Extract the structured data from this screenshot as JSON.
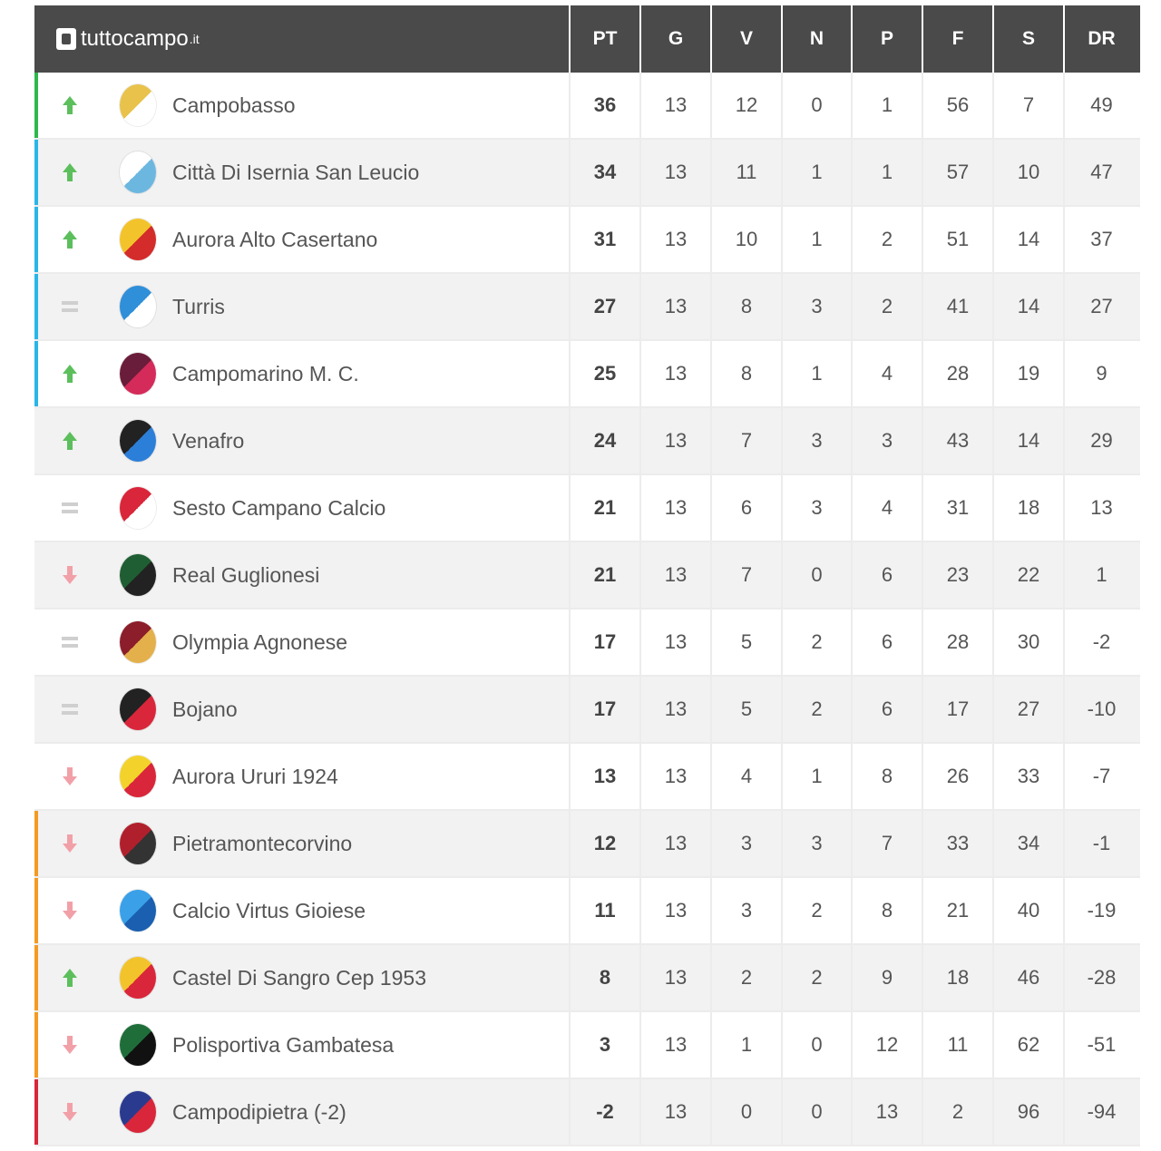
{
  "site": {
    "logo_text": "tuttocampo",
    "logo_tld": ".it"
  },
  "columns": [
    "PT",
    "G",
    "V",
    "N",
    "P",
    "F",
    "S",
    "DR"
  ],
  "colors": {
    "promotion": "#2db84d",
    "playoff": "#29b6e8",
    "playout": "#f59a23",
    "relegation": "#d9263a",
    "up": "#5cbf5c",
    "down": "#f2a0a8",
    "same": "#cfcfcf"
  },
  "teams": [
    {
      "name": "Campobasso",
      "trend": "up",
      "zone": "promotion",
      "badge_colors": [
        "#e8c24a",
        "#ffffff"
      ],
      "stats": [
        "36",
        "13",
        "12",
        "0",
        "1",
        "56",
        "7",
        "49"
      ]
    },
    {
      "name": "Città Di Isernia San Leucio",
      "trend": "up",
      "zone": "playoff",
      "badge_colors": [
        "#ffffff",
        "#6cb7e0"
      ],
      "stats": [
        "34",
        "13",
        "11",
        "1",
        "1",
        "57",
        "10",
        "47"
      ]
    },
    {
      "name": "Aurora Alto Casertano",
      "trend": "up",
      "zone": "playoff",
      "badge_colors": [
        "#f3c32b",
        "#d42b2b"
      ],
      "stats": [
        "31",
        "13",
        "10",
        "1",
        "2",
        "51",
        "14",
        "37"
      ]
    },
    {
      "name": "Turris",
      "trend": "same",
      "zone": "playoff",
      "badge_colors": [
        "#2f8fd8",
        "#ffffff"
      ],
      "stats": [
        "27",
        "13",
        "8",
        "3",
        "2",
        "41",
        "14",
        "27"
      ]
    },
    {
      "name": "Campomarino M. C.",
      "trend": "up",
      "zone": "playoff",
      "badge_colors": [
        "#6a1d3a",
        "#d42b5a"
      ],
      "stats": [
        "25",
        "13",
        "8",
        "1",
        "4",
        "28",
        "19",
        "9"
      ]
    },
    {
      "name": "Venafro",
      "trend": "up",
      "zone": "none",
      "badge_colors": [
        "#222222",
        "#2c7fd8"
      ],
      "stats": [
        "24",
        "13",
        "7",
        "3",
        "3",
        "43",
        "14",
        "29"
      ]
    },
    {
      "name": "Sesto Campano Calcio",
      "trend": "same",
      "zone": "none",
      "badge_colors": [
        "#d9263a",
        "#ffffff"
      ],
      "stats": [
        "21",
        "13",
        "6",
        "3",
        "4",
        "31",
        "18",
        "13"
      ]
    },
    {
      "name": "Real Guglionesi",
      "trend": "down",
      "zone": "none",
      "badge_colors": [
        "#1f5e32",
        "#222222"
      ],
      "stats": [
        "21",
        "13",
        "7",
        "0",
        "6",
        "23",
        "22",
        "1"
      ]
    },
    {
      "name": "Olympia Agnonese",
      "trend": "same",
      "zone": "none",
      "badge_colors": [
        "#8b1e2a",
        "#e3b04b"
      ],
      "stats": [
        "17",
        "13",
        "5",
        "2",
        "6",
        "28",
        "30",
        "-2"
      ]
    },
    {
      "name": "Bojano",
      "trend": "same",
      "zone": "none",
      "badge_colors": [
        "#222222",
        "#d9263a"
      ],
      "stats": [
        "17",
        "13",
        "5",
        "2",
        "6",
        "17",
        "27",
        "-10"
      ]
    },
    {
      "name": "Aurora Ururi 1924",
      "trend": "down",
      "zone": "none",
      "badge_colors": [
        "#f3d22b",
        "#d9263a"
      ],
      "stats": [
        "13",
        "13",
        "4",
        "1",
        "8",
        "26",
        "33",
        "-7"
      ]
    },
    {
      "name": "Pietramontecorvino",
      "trend": "down",
      "zone": "playout",
      "badge_colors": [
        "#b0202c",
        "#333333"
      ],
      "stats": [
        "12",
        "13",
        "3",
        "3",
        "7",
        "33",
        "34",
        "-1"
      ]
    },
    {
      "name": "Calcio Virtus Gioiese",
      "trend": "down",
      "zone": "playout",
      "badge_colors": [
        "#3aa0e8",
        "#1a5fb0"
      ],
      "stats": [
        "11",
        "13",
        "3",
        "2",
        "8",
        "21",
        "40",
        "-19"
      ]
    },
    {
      "name": "Castel Di Sangro Cep 1953",
      "trend": "up",
      "zone": "playout",
      "badge_colors": [
        "#f3c32b",
        "#d9263a"
      ],
      "stats": [
        "8",
        "13",
        "2",
        "2",
        "9",
        "18",
        "46",
        "-28"
      ]
    },
    {
      "name": "Polisportiva Gambatesa",
      "trend": "down",
      "zone": "playout",
      "badge_colors": [
        "#1f6e3a",
        "#111111"
      ],
      "stats": [
        "3",
        "13",
        "1",
        "0",
        "12",
        "11",
        "62",
        "-51"
      ]
    },
    {
      "name": "Campodipietra (-2)",
      "trend": "down",
      "zone": "relegation",
      "badge_colors": [
        "#2a3b8f",
        "#d9263a"
      ],
      "stats": [
        "-2",
        "13",
        "0",
        "0",
        "13",
        "2",
        "96",
        "-94"
      ]
    }
  ]
}
